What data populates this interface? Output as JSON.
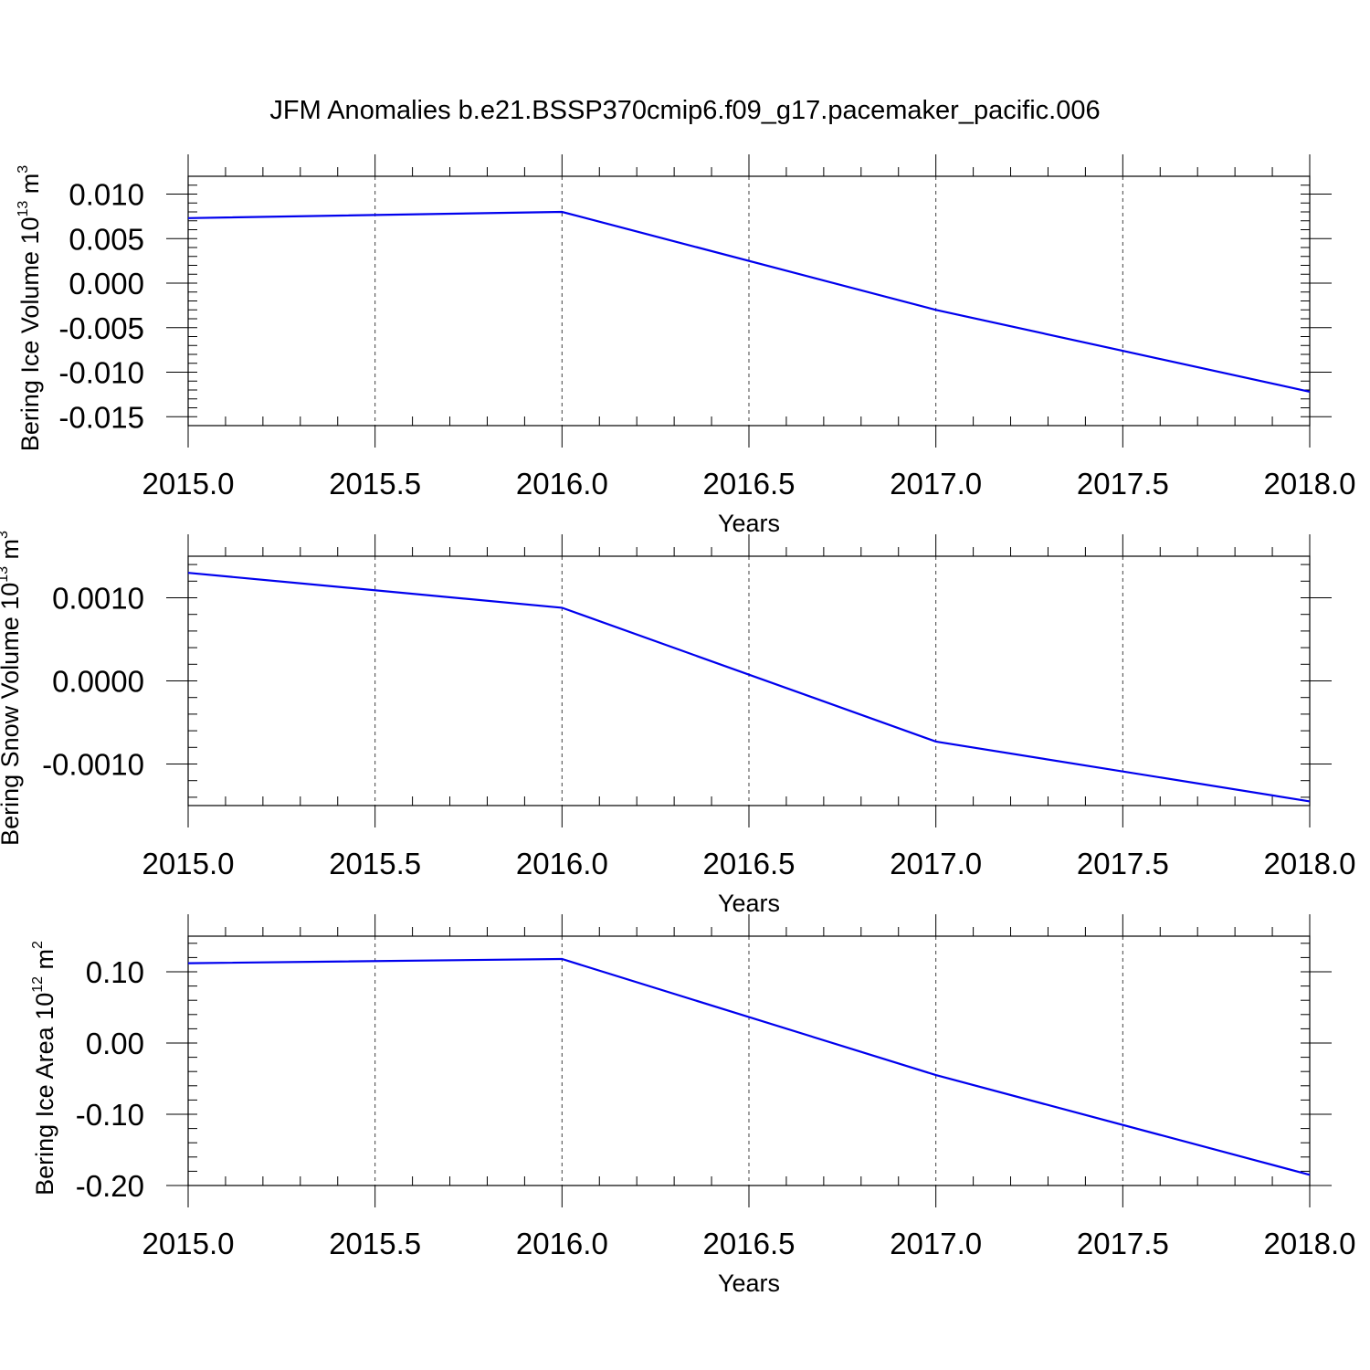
{
  "title": "JFM Anomalies b.e21.BSSP370cmip6.f09_g17.pacemaker_pacific.006",
  "colors": {
    "line": "#0000ee",
    "axis": "#000000",
    "background": "#ffffff"
  },
  "chart_data": [
    {
      "type": "line",
      "xlabel": "Years",
      "ylabel": {
        "text": "Bering Ice Volume 10",
        "sup": "13",
        "unit_text": " m",
        "unit_sup": "3"
      },
      "xlim": [
        2015.0,
        2018.0
      ],
      "ylim": [
        -0.016,
        0.012
      ],
      "grid": true,
      "x_ticks": [
        "2015.0",
        "2015.5",
        "2016.0",
        "2016.5",
        "2017.0",
        "2017.5",
        "2018.0"
      ],
      "y_ticks": [
        {
          "value": 0.01,
          "label": "0.010"
        },
        {
          "value": 0.005,
          "label": "0.005"
        },
        {
          "value": 0.0,
          "label": "0.000"
        },
        {
          "value": -0.005,
          "label": "-0.005"
        },
        {
          "value": -0.01,
          "label": "-0.010"
        },
        {
          "value": -0.015,
          "label": "-0.015"
        }
      ],
      "y_minor_step": 0.001,
      "series": [
        {
          "x": [
            2015,
            2016,
            2017,
            2018
          ],
          "y": [
            0.0073,
            0.008,
            -0.003,
            -0.0122
          ]
        }
      ]
    },
    {
      "type": "line",
      "xlabel": "Years",
      "ylabel": {
        "text": "Bering Snow Volume 10",
        "sup": "13",
        "unit_text": " m",
        "unit_sup": "3"
      },
      "xlim": [
        2015.0,
        2018.0
      ],
      "ylim": [
        -0.0015,
        0.0015
      ],
      "grid": true,
      "x_ticks": [
        "2015.0",
        "2015.5",
        "2016.0",
        "2016.5",
        "2017.0",
        "2017.5",
        "2018.0"
      ],
      "y_ticks": [
        {
          "value": 0.001,
          "label": "0.0010"
        },
        {
          "value": 0.0,
          "label": "0.0000"
        },
        {
          "value": -0.001,
          "label": "-0.0010"
        }
      ],
      "y_minor_step": 0.0002,
      "series": [
        {
          "x": [
            2015,
            2016,
            2017,
            2018
          ],
          "y": [
            0.0013,
            0.00088,
            -0.00073,
            -0.00145
          ]
        }
      ]
    },
    {
      "type": "line",
      "xlabel": "Years",
      "ylabel": {
        "text": "Bering Ice Area 10",
        "sup": "12",
        "unit_text": " m",
        "unit_sup": "2"
      },
      "xlim": [
        2015.0,
        2018.0
      ],
      "ylim": [
        -0.2,
        0.15
      ],
      "grid": true,
      "x_ticks": [
        "2015.0",
        "2015.5",
        "2016.0",
        "2016.5",
        "2017.0",
        "2017.5",
        "2018.0"
      ],
      "y_ticks": [
        {
          "value": 0.1,
          "label": "0.10"
        },
        {
          "value": 0.0,
          "label": "0.00"
        },
        {
          "value": -0.1,
          "label": "-0.10"
        },
        {
          "value": -0.2,
          "label": "-0.20"
        }
      ],
      "y_minor_step": 0.02,
      "series": [
        {
          "x": [
            2015,
            2016,
            2017,
            2018
          ],
          "y": [
            0.112,
            0.118,
            -0.045,
            -0.185
          ]
        }
      ]
    }
  ]
}
